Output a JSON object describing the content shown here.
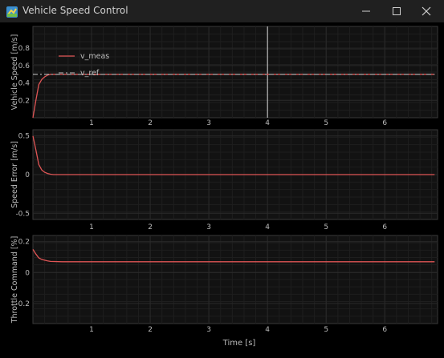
{
  "window": {
    "title": "Vehicle Speed Control",
    "icon": "python-app-icon",
    "controls": [
      "minimize-icon",
      "maximize-icon",
      "close-icon"
    ]
  },
  "colors": {
    "background": "#000000",
    "axes_bg": "#121212",
    "grid": "#2a2a2a",
    "text": "#bbbbbb",
    "meas": "#e05555",
    "ref": "#9a9a9a"
  },
  "xlabel": "Time [s]",
  "chart_data": [
    {
      "type": "line",
      "ylabel": "Vehicle Speed [m/s]",
      "xlim": [
        0,
        6.9
      ],
      "ylim": [
        0,
        1.05
      ],
      "xticks": [
        1,
        2,
        3,
        4,
        5,
        6
      ],
      "yticks": [
        0.2,
        0.4,
        0.6,
        0.8
      ],
      "ytick_labels": [
        "0.2",
        "0.4",
        "0.6",
        "0.8"
      ],
      "vertical_marker_x": 4,
      "legend": {
        "placement": "top-left"
      },
      "series": [
        {
          "name": "v_meas",
          "style": "solid",
          "color": "#e05555",
          "x": [
            0,
            0.05,
            0.1,
            0.15,
            0.2,
            0.25,
            0.3,
            0.5,
            1,
            2,
            3,
            4,
            5,
            6,
            6.85
          ],
          "y": [
            0,
            0.2,
            0.38,
            0.44,
            0.47,
            0.49,
            0.5,
            0.5,
            0.5,
            0.5,
            0.5,
            0.5,
            0.5,
            0.5,
            0.5
          ]
        },
        {
          "name": "v_ref",
          "style": "dashed",
          "color": "#9a9a9a",
          "x": [
            0,
            6.85
          ],
          "y": [
            0.5,
            0.5
          ]
        }
      ]
    },
    {
      "type": "line",
      "ylabel": "Speed Error [m/s]",
      "xlim": [
        0,
        6.9
      ],
      "ylim": [
        -0.58,
        0.58
      ],
      "xticks": [
        1,
        2,
        3,
        4,
        5,
        6
      ],
      "yticks": [
        -0.5,
        0,
        0.5
      ],
      "ytick_labels": [
        "-0.5",
        "0",
        "0.5"
      ],
      "series": [
        {
          "color": "#e05555",
          "x": [
            0,
            0.05,
            0.1,
            0.15,
            0.2,
            0.25,
            0.3,
            0.35,
            0.5,
            1,
            2,
            3,
            4,
            5,
            6,
            6.85
          ],
          "y": [
            0.5,
            0.32,
            0.13,
            0.06,
            0.03,
            0.015,
            0.005,
            0,
            0,
            0,
            0,
            0,
            0,
            0,
            0,
            0
          ]
        }
      ]
    },
    {
      "type": "line",
      "ylabel": "Throttle Command [%]",
      "xlim": [
        0,
        6.9
      ],
      "ylim": [
        -0.33,
        0.24
      ],
      "xticks": [
        1,
        2,
        3,
        4,
        5,
        6
      ],
      "yticks": [
        -0.2,
        0,
        0.2
      ],
      "ytick_labels": [
        "-0.2",
        "0",
        "0.2"
      ],
      "series": [
        {
          "color": "#e05555",
          "x": [
            0,
            0.05,
            0.1,
            0.15,
            0.2,
            0.25,
            0.3,
            0.5,
            1,
            2,
            3,
            4,
            5,
            6,
            6.85
          ],
          "y": [
            0.15,
            0.12,
            0.095,
            0.085,
            0.08,
            0.075,
            0.072,
            0.07,
            0.07,
            0.07,
            0.07,
            0.07,
            0.07,
            0.07,
            0.07
          ]
        }
      ]
    }
  ]
}
